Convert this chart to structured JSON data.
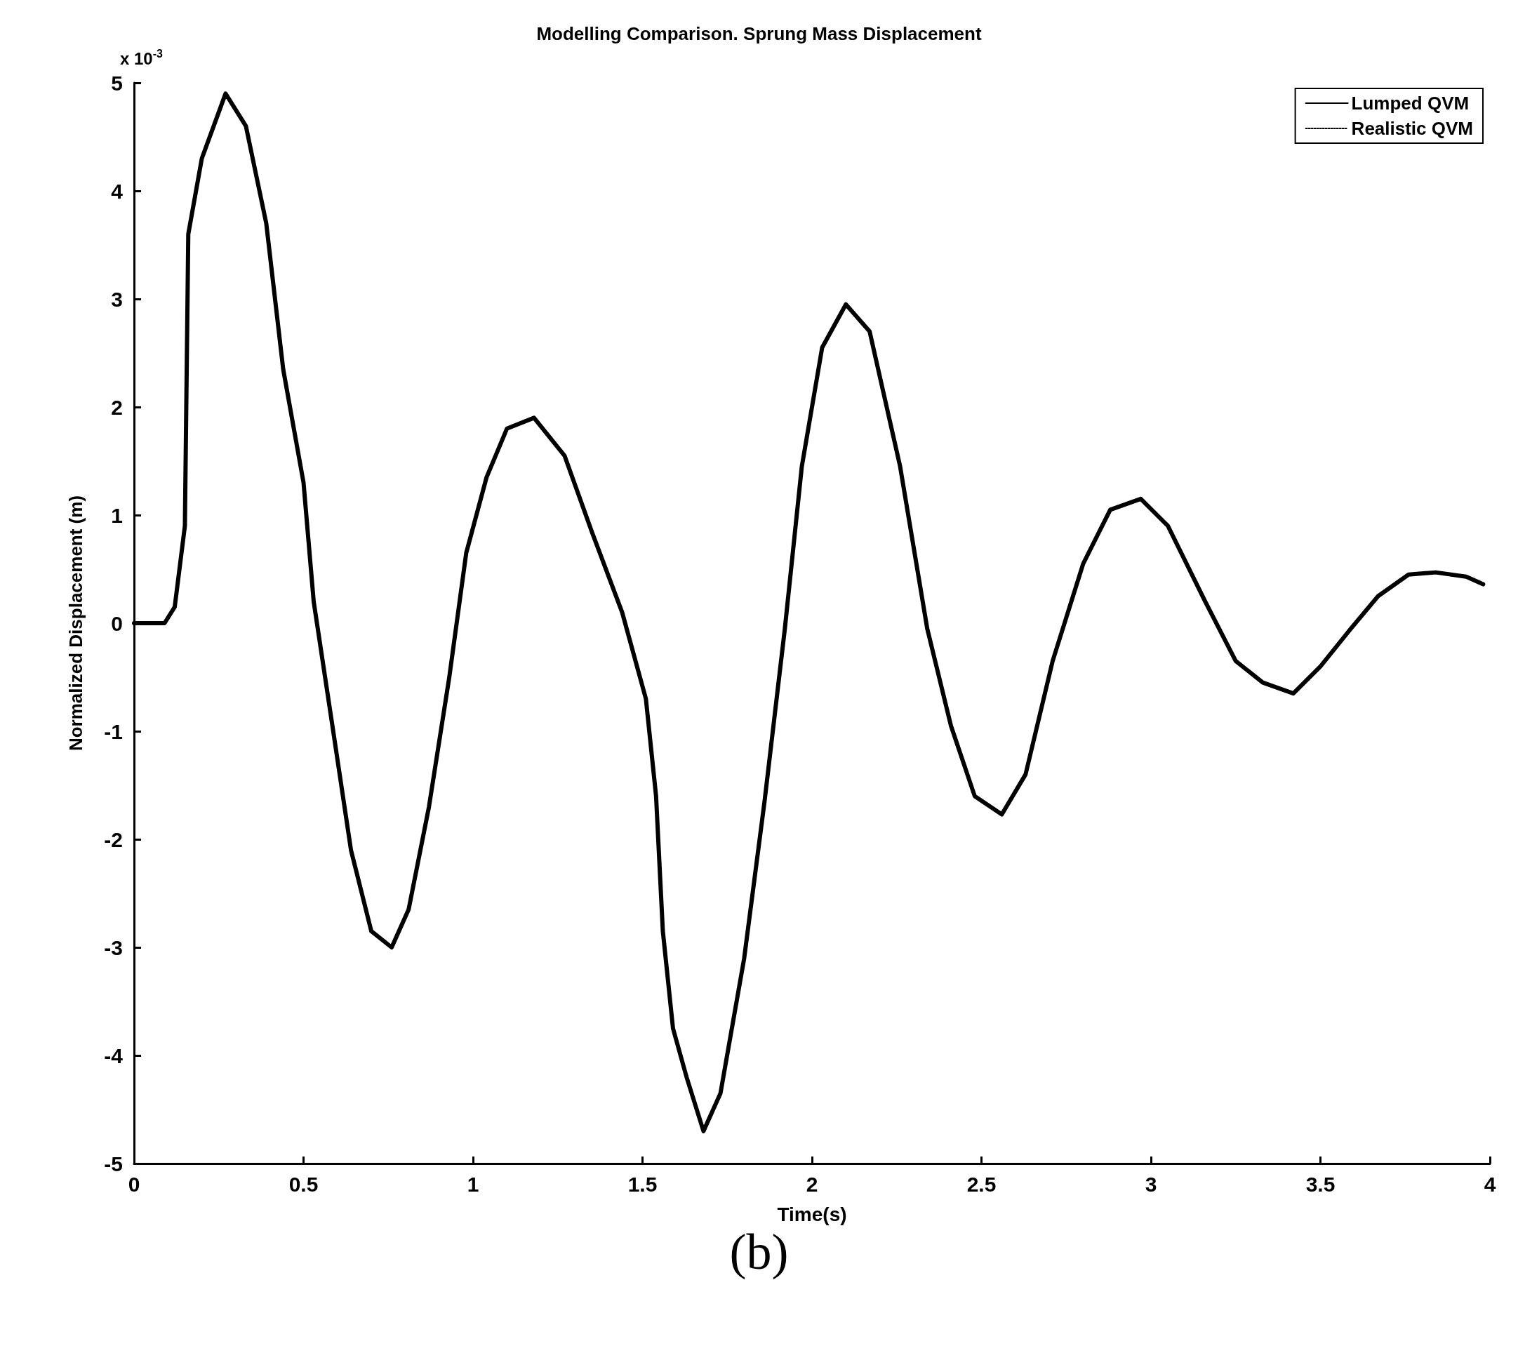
{
  "chart_data": {
    "type": "line",
    "title": "Modelling Comparison. Sprung Mass Displacement",
    "xlabel": "Time(s)",
    "ylabel": "Normalized Displacement (m)",
    "annotations": [
      "x 10$^{-3}$",
      "(b)"
    ],
    "xlim": [
      0,
      4
    ],
    "xticks": [
      0,
      0.5,
      1,
      1.5,
      2,
      2.5,
      3,
      3.5,
      4
    ],
    "ylim": [
      -5,
      5
    ],
    "yticks": [
      -5,
      -4,
      -3,
      -2,
      -1,
      0,
      1,
      2,
      3,
      4,
      5
    ],
    "grid": false,
    "legend": "top right",
    "marker": "none",
    "series": [
      {
        "name": "Lumped QVM",
        "color": "#000000",
        "line_style": "solid",
        "x": [
          0,
          0.09,
          0.12,
          0.15,
          0.16,
          0.2,
          0.27,
          0.33,
          0.39,
          0.44,
          0.5,
          0.53,
          0.59,
          0.64,
          0.7,
          0.76,
          0.81,
          0.87,
          0.93,
          0.98,
          1.04,
          1.1,
          1.18,
          1.27,
          1.35,
          1.44,
          1.51,
          1.54,
          1.56,
          1.59,
          1.63,
          1.68,
          1.73,
          1.8,
          1.86,
          1.92,
          1.97,
          2.03,
          2.1,
          2.17,
          2.26,
          2.34,
          2.41,
          2.48,
          2.56,
          2.63,
          2.71,
          2.8,
          2.88,
          2.97,
          3.05,
          3.16,
          3.25,
          3.33,
          3.42,
          3.5,
          3.59,
          3.67,
          3.76,
          3.84,
          3.93,
          3.98
        ],
        "values": [
          0,
          0,
          0.15,
          0.9,
          3.6,
          4.3,
          4.9,
          4.6,
          3.7,
          2.35,
          1.3,
          0.2,
          -1.05,
          -2.1,
          -2.85,
          -3.0,
          -2.65,
          -1.7,
          -0.5,
          0.65,
          1.35,
          1.8,
          1.9,
          1.55,
          0.85,
          0.1,
          -0.7,
          -1.6,
          -2.85,
          -3.75,
          -4.2,
          -4.7,
          -4.35,
          -3.1,
          -1.65,
          -0.05,
          1.45,
          2.55,
          2.95,
          2.7,
          1.45,
          -0.05,
          -0.95,
          -1.6,
          -1.77,
          -1.4,
          -0.35,
          0.55,
          1.05,
          1.15,
          0.9,
          0.2,
          -0.35,
          -0.55,
          -0.65,
          -0.4,
          -0.05,
          0.25,
          0.45,
          0.47,
          0.43,
          0.36
        ]
      },
      {
        "name": "Realistic QVM",
        "color": "#000000",
        "line_style": "dotted"
      }
    ]
  }
}
